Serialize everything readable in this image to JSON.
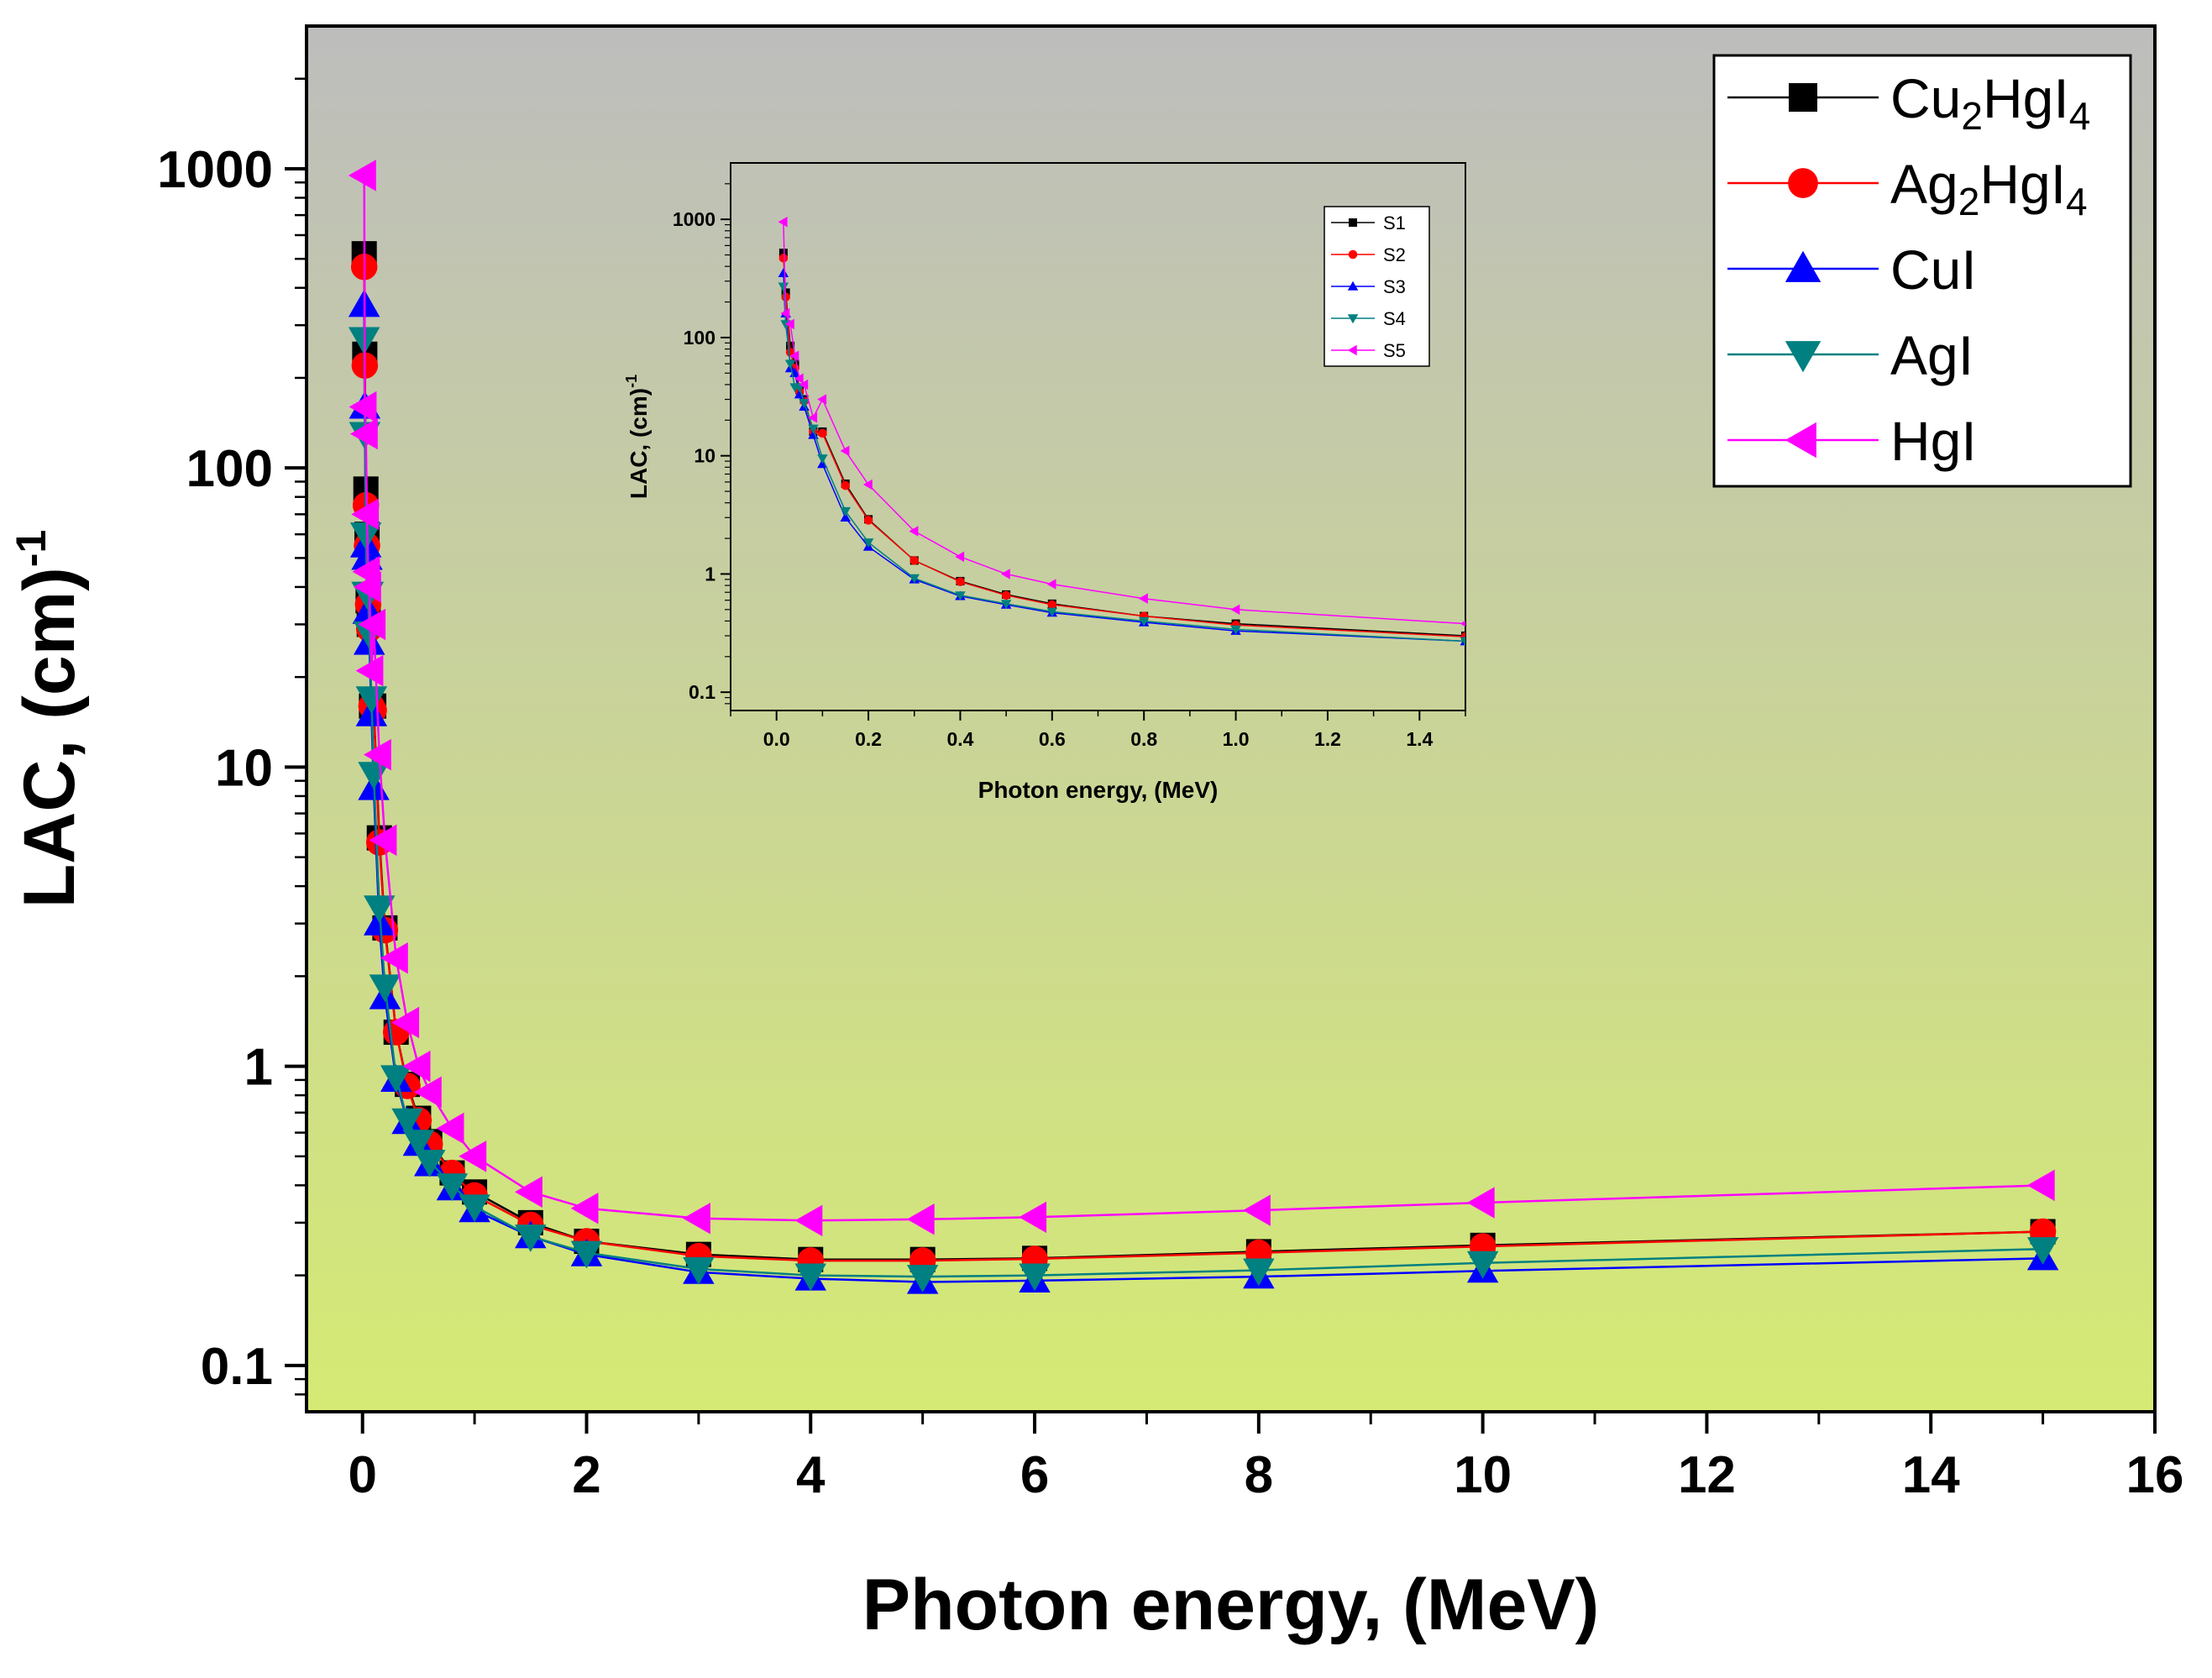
{
  "chart_data": [
    {
      "type": "line",
      "x_scale": "linear",
      "y_scale": "log",
      "xlabel": "Photon energy, (MeV)",
      "ylabel": {
        "main": "LAC,  (cm)",
        "superscript": "-1"
      },
      "xlim": [
        -0.5,
        16
      ],
      "ylim": [
        0.07,
        3000
      ],
      "x_ticks": [
        0,
        2,
        4,
        6,
        8,
        10,
        12,
        14,
        16
      ],
      "x_tick_labels": [
        "0",
        "2",
        "4",
        "6",
        "8",
        "10",
        "12",
        "14",
        "16"
      ],
      "y_ticks": [
        0.1,
        1,
        10,
        100,
        1000
      ],
      "y_tick_labels": [
        "0.1",
        "1",
        "10",
        "100",
        "1000"
      ],
      "legend_position": "top-right",
      "x": [
        0.015,
        0.02,
        0.03,
        0.04,
        0.05,
        0.06,
        0.08,
        0.1,
        0.15,
        0.2,
        0.3,
        0.4,
        0.5,
        0.6,
        0.8,
        1.0,
        1.5,
        2,
        3,
        4,
        5,
        6,
        8,
        10,
        15
      ],
      "series": [
        {
          "name": "Cu2HgI4",
          "label": {
            "base": "Cu",
            "sub1": "2",
            "mid": "HgI",
            "sub2": "4"
          },
          "color": "#000000",
          "marker": "square",
          "values": [
            520,
            240,
            85,
            60,
            36,
            30,
            16,
            16,
            5.8,
            2.9,
            1.3,
            0.87,
            0.67,
            0.56,
            0.44,
            0.38,
            0.3,
            0.26,
            0.235,
            0.226,
            0.226,
            0.228,
            0.24,
            0.252,
            0.28
          ]
        },
        {
          "name": "Ag2HgI4",
          "label": {
            "base": "Ag",
            "sub1": "2",
            "mid": "HgI",
            "sub2": "4"
          },
          "color": "#ff0000",
          "marker": "circle",
          "values": [
            470,
            220,
            75,
            55,
            35,
            29,
            16,
            15.5,
            5.6,
            2.85,
            1.3,
            0.86,
            0.66,
            0.55,
            0.44,
            0.37,
            0.295,
            0.26,
            0.232,
            0.224,
            0.224,
            0.227,
            0.238,
            0.25,
            0.28
          ]
        },
        {
          "name": "CuI",
          "label": {
            "base": "CuI",
            "sub1": "",
            "mid": "",
            "sub2": ""
          },
          "color": "#0000ff",
          "marker": "triangle-up",
          "values": [
            350,
            160,
            55,
            50,
            33,
            26,
            15,
            8.5,
            3.0,
            1.7,
            0.9,
            0.65,
            0.55,
            0.47,
            0.39,
            0.33,
            0.27,
            0.235,
            0.205,
            0.195,
            0.19,
            0.192,
            0.198,
            0.207,
            0.228
          ]
        },
        {
          "name": "AgI",
          "label": {
            "base": "AgI",
            "sub1": "",
            "mid": "",
            "sub2": ""
          },
          "color": "#008080",
          "marker": "triangle-down",
          "values": [
            270,
            130,
            60,
            38,
            38,
            28,
            17,
            9.5,
            3.4,
            1.85,
            0.92,
            0.66,
            0.56,
            0.48,
            0.4,
            0.34,
            0.27,
            0.238,
            0.21,
            0.2,
            0.198,
            0.2,
            0.208,
            0.22,
            0.245
          ]
        },
        {
          "name": "HgI",
          "label": {
            "base": "HgI",
            "sub1": "",
            "mid": "",
            "sub2": ""
          },
          "color": "#ff00ff",
          "marker": "triangle-left",
          "values": [
            950,
            160,
            130,
            70,
            45,
            40,
            21,
            30,
            11,
            5.7,
            2.3,
            1.4,
            1.0,
            0.82,
            0.62,
            0.5,
            0.38,
            0.335,
            0.31,
            0.305,
            0.308,
            0.313,
            0.33,
            0.35,
            0.4
          ]
        }
      ]
    },
    {
      "type": "line",
      "placement": "inset",
      "x_scale": "linear",
      "y_scale": "log",
      "xlabel": "Photon energy, (MeV)",
      "ylabel": {
        "main": "LAC,  (cm)",
        "superscript": "-1"
      },
      "xlim": [
        -0.1,
        1.5
      ],
      "ylim": [
        0.07,
        3000
      ],
      "x_ticks": [
        0.0,
        0.2,
        0.4,
        0.6,
        0.8,
        1.0,
        1.2,
        1.4
      ],
      "x_tick_labels": [
        "0.0",
        "0.2",
        "0.4",
        "0.6",
        "0.8",
        "1.0",
        "1.2",
        "1.4"
      ],
      "y_ticks": [
        0.1,
        1,
        10,
        100,
        1000
      ],
      "y_tick_labels": [
        "0.1",
        "1",
        "10",
        "100",
        "1000"
      ],
      "legend_position": "top-right",
      "legend": [
        "S1",
        "S2",
        "S3",
        "S4",
        "S5"
      ],
      "note": "Same five series as the main chart, zoomed to 0-1.5 MeV"
    }
  ]
}
